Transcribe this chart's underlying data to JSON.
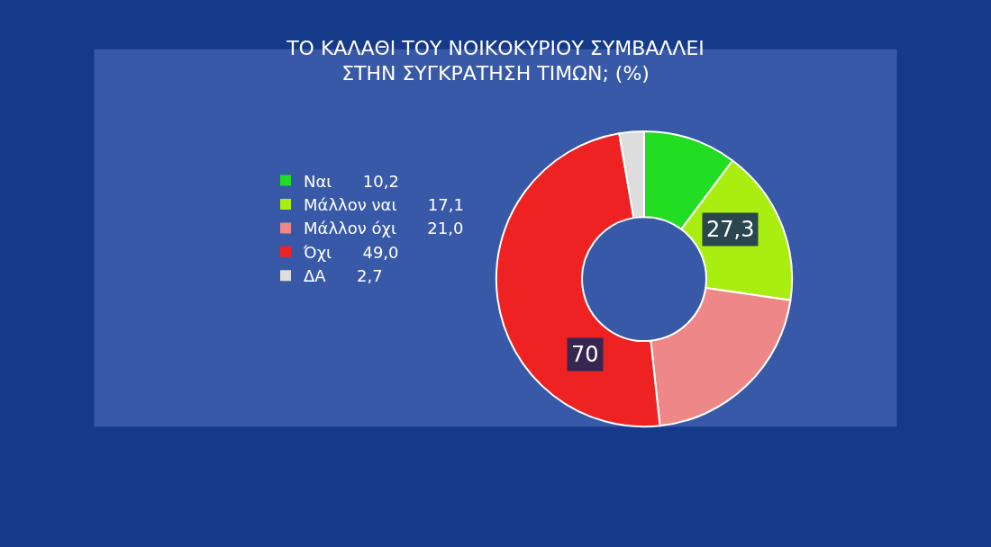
{
  "chart_data": {
    "type": "donut",
    "title": "ΤΟ ΚΑΛΑΘΙ ΤΟΥ ΝΟΙΚΟΚΥΡΙΟΥ ΣΥΜΒΑΛΛΕΙ\nΣΤΗΝ ΣΥΓΚΡΑΤΗΣΗ ΤΙΜΩΝ; (%)",
    "categories": [
      "Ναι",
      "Μάλλον ναι",
      "Μάλλον όχι",
      "Όχι",
      "ΔΑ"
    ],
    "values": [
      10.2,
      17.1,
      21.0,
      49.0,
      2.7
    ],
    "value_labels": [
      "10,2",
      "17,1",
      "21,0",
      "49,0",
      "2,7"
    ],
    "colors": [
      "#22dd22",
      "#aaee11",
      "#ee8888",
      "#ee2222",
      "#dddddd"
    ],
    "annotations": [
      "27,3",
      "70"
    ],
    "legend": "left"
  }
}
